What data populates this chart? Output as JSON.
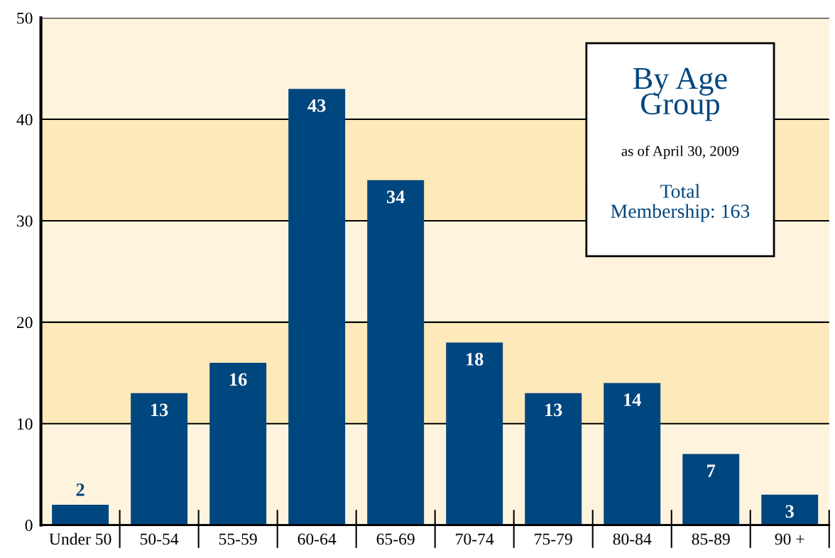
{
  "chart_data": {
    "type": "bar",
    "title": "By Age Group",
    "subtitle": "as of April 30, 2009",
    "annotations": [
      "Total Membership: 163"
    ],
    "categories": [
      "Under 50",
      "50-54",
      "55-59",
      "60-64",
      "65-69",
      "70-74",
      "75-79",
      "80-84",
      "85-89",
      "90 +"
    ],
    "values": [
      2,
      13,
      16,
      43,
      34,
      18,
      13,
      14,
      7,
      3
    ],
    "color": "#00467f",
    "ylim": [
      0,
      50
    ],
    "yticks": [
      0,
      10,
      20,
      30,
      40,
      50
    ],
    "grid": "y",
    "data_labels": true,
    "bands": [
      {
        "axis": "y",
        "from": 10,
        "to": 20,
        "color": "#fde9b9"
      },
      {
        "axis": "y",
        "from": 30,
        "to": 40,
        "color": "#fde9b9"
      }
    ]
  }
}
